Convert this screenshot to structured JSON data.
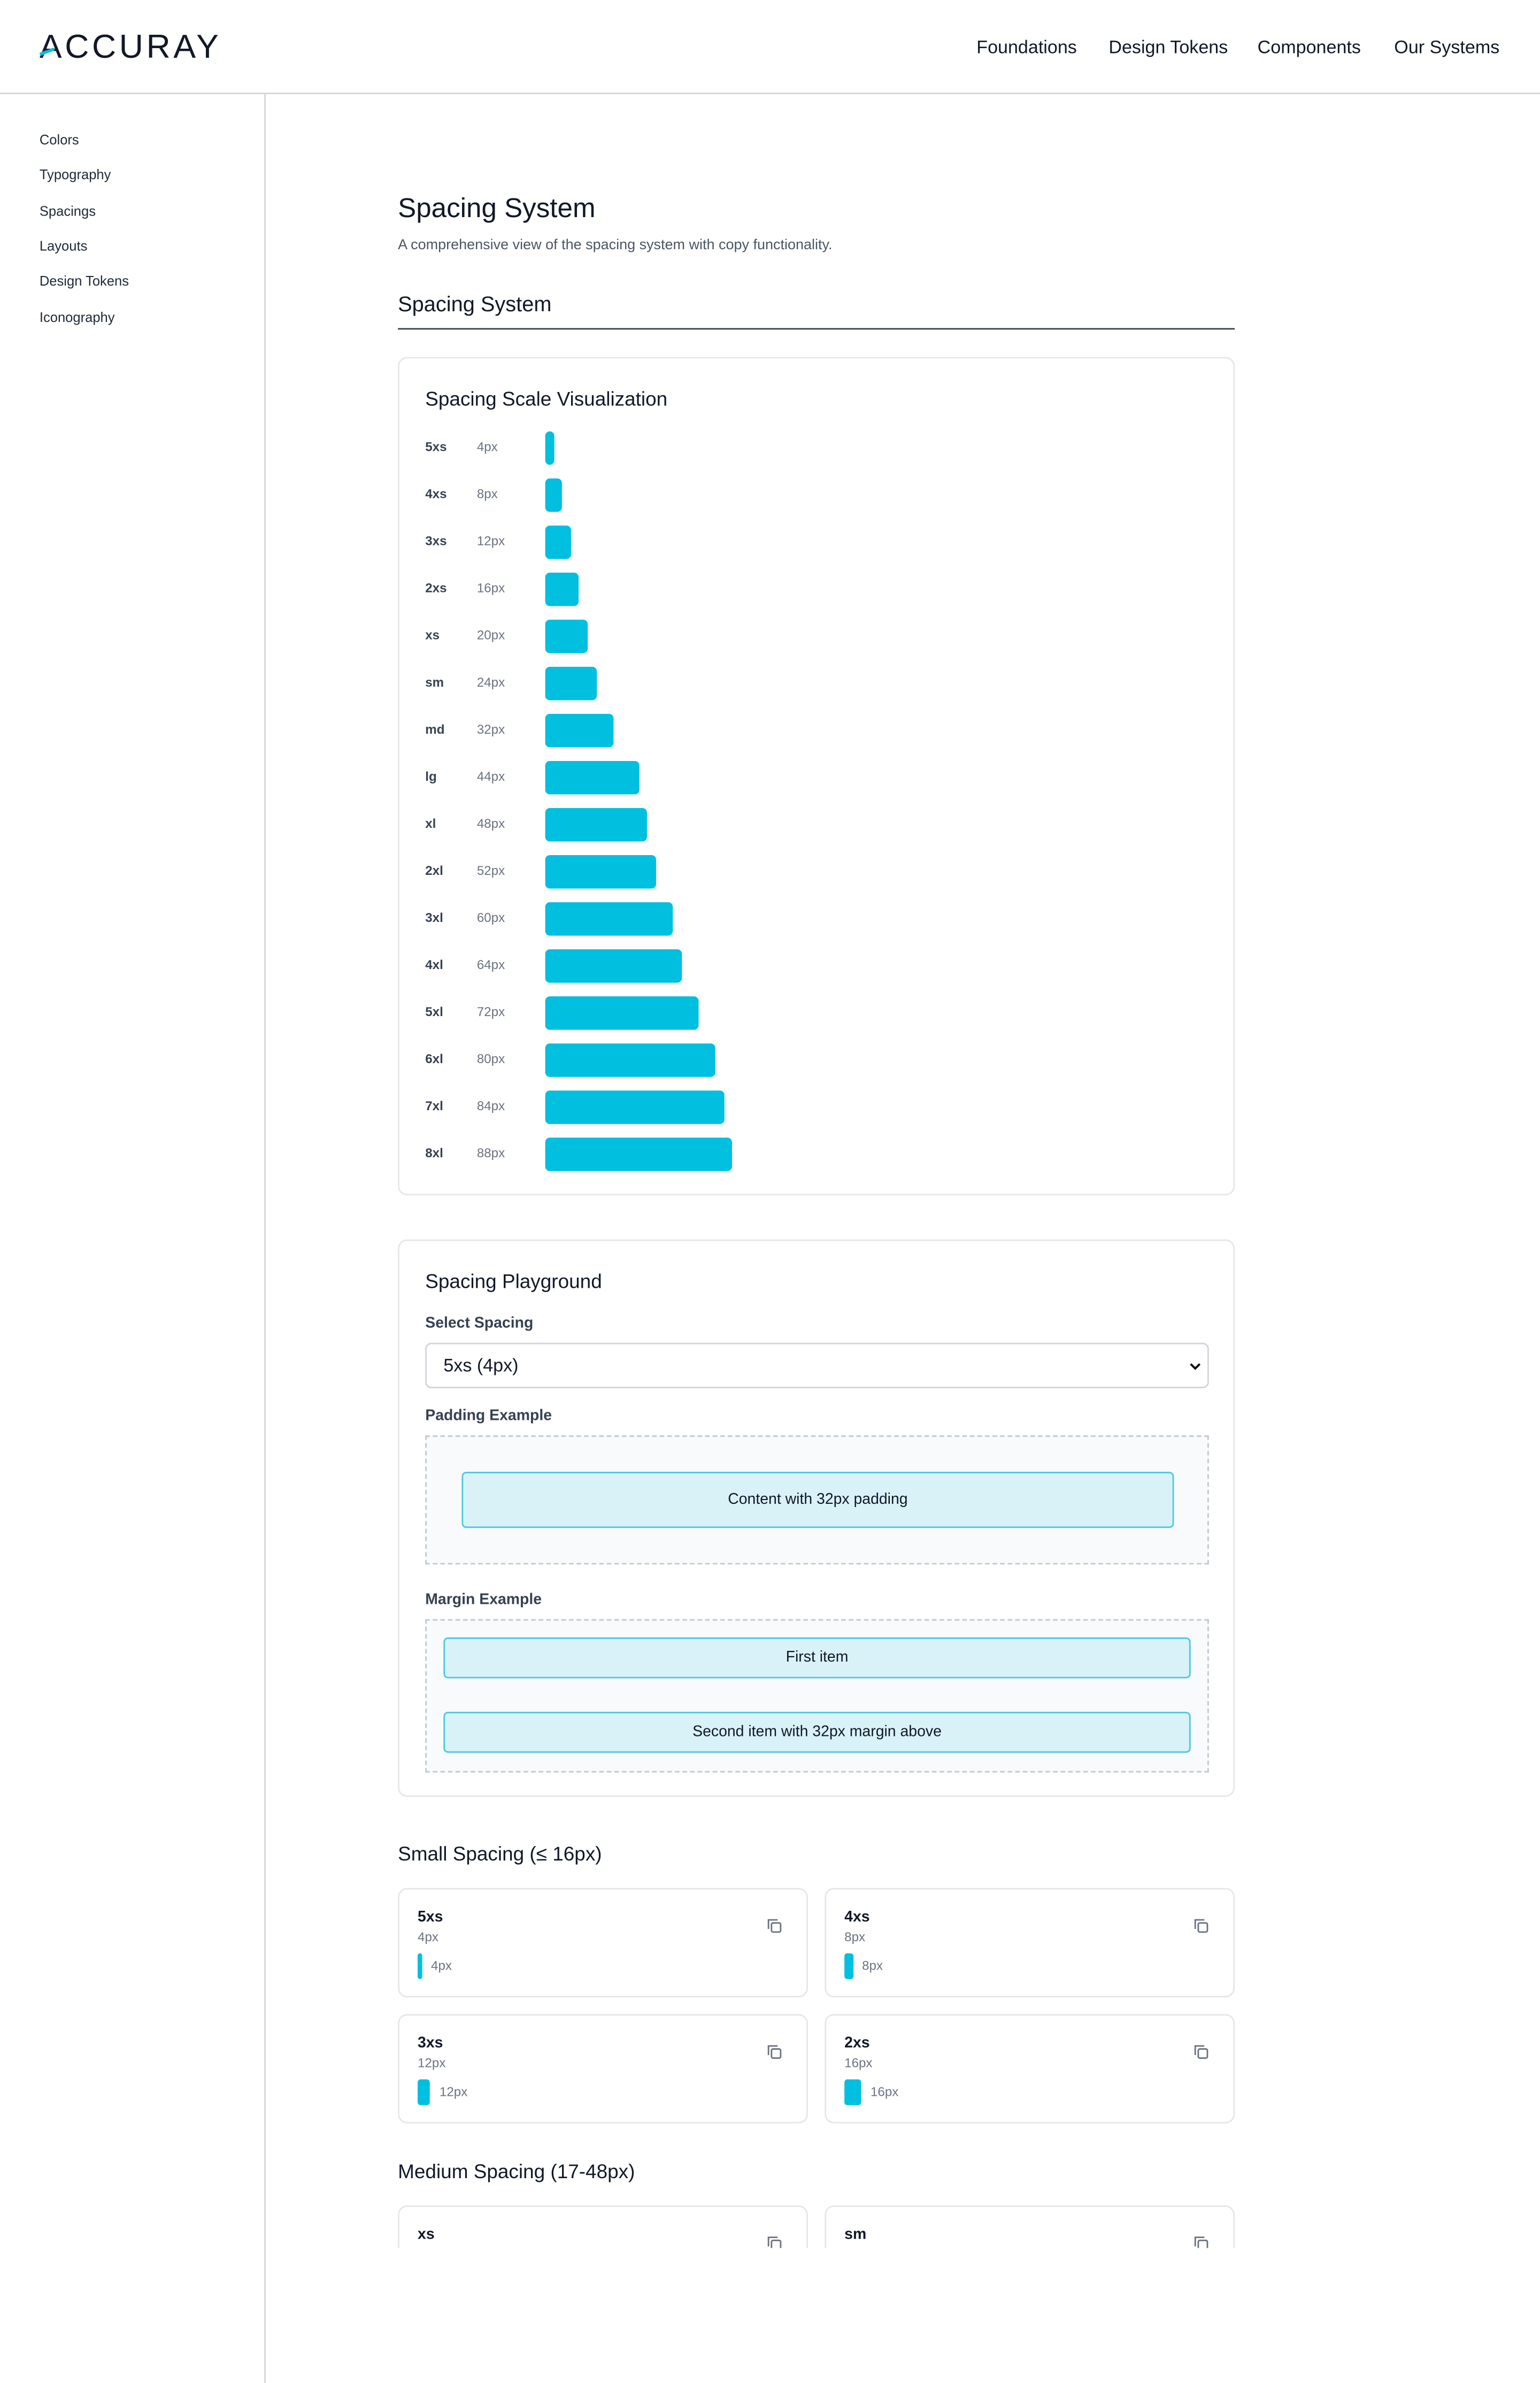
{
  "header": {
    "logo": "ACCURAY",
    "nav": [
      "Foundations",
      "Design Tokens",
      "Components",
      "Our Systems"
    ]
  },
  "sidebar": [
    "Colors",
    "Typography",
    "Spacings",
    "Layouts",
    "Design Tokens",
    "Iconography"
  ],
  "page": {
    "title": "Spacing System",
    "subtitle": "A comprehensive view of the spacing system with copy functionality."
  },
  "section": {
    "title": "Spacing System"
  },
  "visualization": {
    "title": "Spacing Scale Visualization",
    "items": [
      {
        "name": "5xs",
        "size": "4px"
      },
      {
        "name": "4xs",
        "size": "8px"
      },
      {
        "name": "3xs",
        "size": "12px"
      },
      {
        "name": "2xs",
        "size": "16px"
      },
      {
        "name": "xs",
        "size": "20px"
      },
      {
        "name": "sm",
        "size": "24px"
      },
      {
        "name": "md",
        "size": "32px"
      },
      {
        "name": "lg",
        "size": "44px"
      },
      {
        "name": "xl",
        "size": "48px"
      },
      {
        "name": "2xl",
        "size": "52px"
      },
      {
        "name": "3xl",
        "size": "60px"
      },
      {
        "name": "4xl",
        "size": "64px"
      },
      {
        "name": "5xl",
        "size": "72px"
      },
      {
        "name": "6xl",
        "size": "80px"
      },
      {
        "name": "7xl",
        "size": "84px"
      },
      {
        "name": "8xl",
        "size": "88px"
      }
    ]
  },
  "playground": {
    "title": "Spacing Playground",
    "select_label": "Select Spacing",
    "select_value": "5xs (4px)",
    "padding_label": "Padding Example",
    "padding_content": "Content with 32px padding",
    "margin_label": "Margin Example",
    "margin_first": "First item",
    "margin_second": "Second item with 32px margin above"
  },
  "small": {
    "title": "Small Spacing (≤ 16px)",
    "cards": [
      {
        "name": "5xs",
        "size": "4px"
      },
      {
        "name": "4xs",
        "size": "8px"
      },
      {
        "name": "3xs",
        "size": "12px"
      },
      {
        "name": "2xs",
        "size": "16px"
      }
    ]
  },
  "medium": {
    "title": "Medium Spacing (17-48px)",
    "cards": [
      {
        "name": "xs"
      },
      {
        "name": "sm"
      }
    ]
  }
}
